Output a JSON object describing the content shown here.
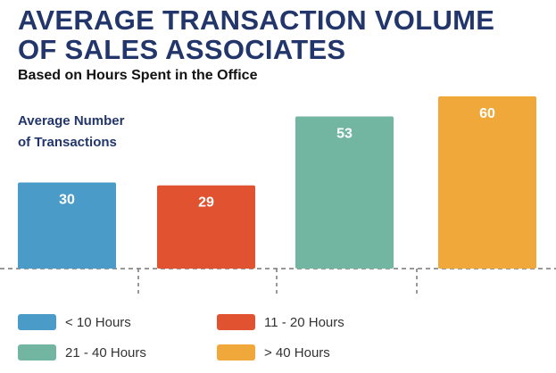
{
  "title_line1": "AVERAGE TRANSACTION VOLUME",
  "title_line2": "OF SALES ASSOCIATES",
  "subtitle": "Based on Hours Spent in the Office",
  "ylabel_line1": "Average Number",
  "ylabel_line2": "of Transactions",
  "chart_data": {
    "type": "bar",
    "title": "AVERAGE TRANSACTION VOLUME OF SALES ASSOCIATES",
    "subtitle": "Based on Hours Spent in the Office",
    "ylabel": "Average Number of Transactions",
    "xlabel": "",
    "categories": [
      "< 10 Hours",
      "11 - 20 Hours",
      "21 - 40 Hours",
      "> 40 Hours"
    ],
    "values": [
      30,
      29,
      53,
      60
    ],
    "colors": [
      "#4a9bc8",
      "#e05230",
      "#72b6a1",
      "#f0a83a"
    ],
    "ylim": [
      0,
      60
    ],
    "grid": false,
    "legend": "bottom"
  },
  "legend": [
    {
      "label": "< 10 Hours",
      "color": "#4a9bc8"
    },
    {
      "label": "11 - 20 Hours",
      "color": "#e05230"
    },
    {
      "label": "21 - 40 Hours",
      "color": "#72b6a1"
    },
    {
      "label": "> 40 Hours",
      "color": "#f0a83a"
    }
  ]
}
